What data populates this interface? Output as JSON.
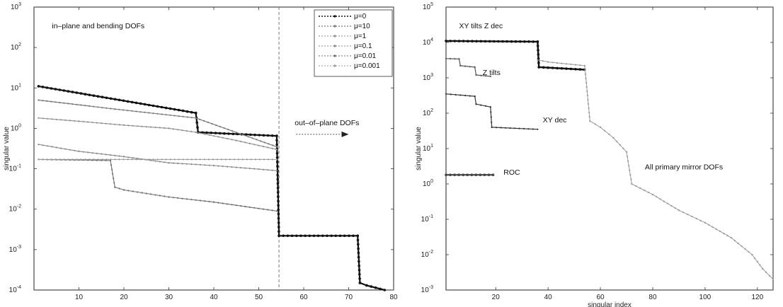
{
  "chart_data": [
    {
      "type": "line",
      "title": "",
      "xlabel": "",
      "ylabel": "singular value",
      "xlim": [
        0,
        80
      ],
      "ylim": [
        0.0001,
        1000
      ],
      "yscale": "log",
      "xticks": [
        10,
        20,
        30,
        40,
        50,
        60,
        70,
        80
      ],
      "yticks": [
        {
          "value": 1000,
          "base": "10",
          "exp": "3"
        },
        {
          "value": 100,
          "base": "10",
          "exp": "2"
        },
        {
          "value": 10,
          "base": "10",
          "exp": "1"
        },
        {
          "value": 1,
          "base": "10",
          "exp": "0"
        },
        {
          "value": 0.1,
          "base": "10",
          "exp": "-1"
        },
        {
          "value": 0.01,
          "base": "10",
          "exp": "-2"
        },
        {
          "value": 0.001,
          "base": "10",
          "exp": "-3"
        },
        {
          "value": 0.0001,
          "base": "10",
          "exp": "-4"
        }
      ],
      "legend": {
        "placement": "top-right"
      },
      "vline_x": 54.5,
      "annotations": [
        {
          "text": "in–plane and bending DOFs",
          "x": 4,
          "y": 300
        },
        {
          "text": "out–of–plane DOFs",
          "x": 58,
          "y": 1.2,
          "arrow_to_x": 70
        }
      ],
      "series": [
        {
          "name": "μ=0",
          "color": "#111111",
          "width": 2.2,
          "x": [
            1,
            36,
            36.5,
            54,
            54.5,
            72,
            72.5,
            74,
            78
          ],
          "y": [
            11,
            2.4,
            0.8,
            0.65,
            0.0022,
            0.0022,
            0.00015,
            0.00013,
            0.0001
          ]
        },
        {
          "name": "μ=10",
          "color": "#7a7a7a",
          "width": 1.2,
          "x": [
            1,
            18,
            36,
            54
          ],
          "y": [
            5,
            3,
            1.8,
            0.35
          ]
        },
        {
          "name": "μ=1",
          "color": "#909090",
          "width": 1.1,
          "x": [
            1,
            10,
            20,
            30,
            36,
            45,
            54
          ],
          "y": [
            1.8,
            1.5,
            1.2,
            1.0,
            0.8,
            0.5,
            0.3
          ]
        },
        {
          "name": "μ=0.1",
          "color": "#8a8a8a",
          "width": 1.1,
          "x": [
            1,
            10,
            20,
            30,
            40,
            54
          ],
          "y": [
            0.4,
            0.27,
            0.2,
            0.14,
            0.12,
            0.09
          ]
        },
        {
          "name": "μ=0.01",
          "color": "#6e6e6e",
          "width": 1.1,
          "x": [
            1,
            17,
            18,
            20,
            30,
            40,
            54
          ],
          "y": [
            0.17,
            0.16,
            0.035,
            0.03,
            0.02,
            0.015,
            0.009
          ]
        },
        {
          "name": "μ=0.001",
          "color": "#9a9a9a",
          "width": 1.0,
          "x": [
            1,
            54
          ],
          "y": [
            0.17,
            0.17
          ]
        }
      ]
    },
    {
      "type": "line",
      "title": "",
      "xlabel": "singular index",
      "ylabel": "singular value",
      "xlim": [
        1,
        126
      ],
      "ylim": [
        0.001,
        100000
      ],
      "yscale": "log",
      "xticks": [
        20,
        40,
        60,
        80,
        100,
        120
      ],
      "yticks": [
        {
          "value": 100000,
          "base": "10",
          "exp": "5"
        },
        {
          "value": 10000,
          "base": "10",
          "exp": "4"
        },
        {
          "value": 1000,
          "base": "10",
          "exp": "3"
        },
        {
          "value": 100,
          "base": "10",
          "exp": "2"
        },
        {
          "value": 10,
          "base": "10",
          "exp": "1"
        },
        {
          "value": 1,
          "base": "10",
          "exp": "0"
        },
        {
          "value": 0.1,
          "base": "10",
          "exp": "-1"
        },
        {
          "value": 0.01,
          "base": "10",
          "exp": "-2"
        },
        {
          "value": 0.001,
          "base": "10",
          "exp": "-3"
        }
      ],
      "annotations": [
        {
          "text": "XY tilts Z dec",
          "x": 6,
          "y": 25000
        },
        {
          "text": "Z tilts",
          "x": 15,
          "y": 1200
        },
        {
          "text": "XY dec",
          "x": 38,
          "y": 55
        },
        {
          "text": "ROC",
          "x": 23,
          "y": 1.8
        },
        {
          "text": "All primary mirror DOFs",
          "x": 77,
          "y": 2.6
        }
      ],
      "series": [
        {
          "name": "XY tilts Z dec",
          "color": "#111111",
          "width": 2.4,
          "x": [
            1,
            36,
            36.5,
            54
          ],
          "y": [
            11000,
            10500,
            2000,
            1700
          ]
        },
        {
          "name": "All primary mirror DOFs",
          "color": "#9a9a9a",
          "width": 1.0,
          "x": [
            36,
            40,
            54,
            56,
            60,
            65,
            70,
            72,
            80,
            90,
            100,
            110,
            118,
            122,
            126
          ],
          "y": [
            3200,
            2800,
            2200,
            60,
            40,
            20,
            8,
            1,
            0.5,
            0.18,
            0.08,
            0.03,
            0.01,
            0.004,
            0.002
          ]
        },
        {
          "name": "Z tilts",
          "color": "#555555",
          "width": 1.2,
          "x": [
            1,
            6,
            6.5,
            12,
            12.5,
            18
          ],
          "y": [
            3500,
            3400,
            2200,
            2000,
            1200,
            1100
          ]
        },
        {
          "name": "XY dec",
          "color": "#333333",
          "width": 1.2,
          "x": [
            1,
            12,
            12.5,
            18,
            18.5,
            36
          ],
          "y": [
            350,
            300,
            180,
            150,
            40,
            35
          ]
        },
        {
          "name": "ROC",
          "color": "#444444",
          "width": 2.2,
          "x": [
            1,
            19
          ],
          "y": [
            1.8,
            1.8
          ]
        }
      ]
    }
  ]
}
